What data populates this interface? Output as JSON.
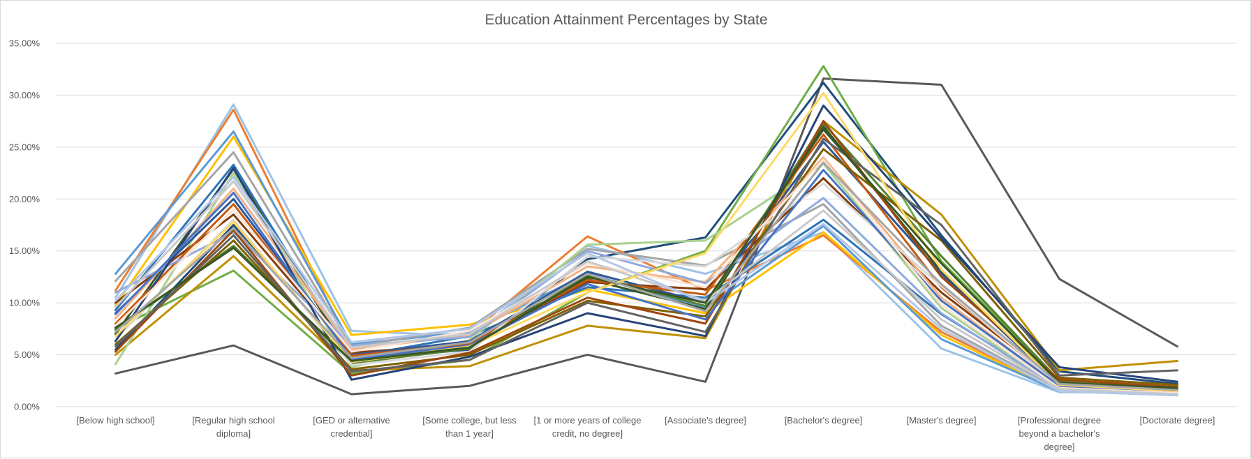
{
  "chart_data": {
    "type": "line",
    "title": "Education Attainment Percentages by State",
    "xlabel": "",
    "ylabel": "",
    "ylim": [
      0,
      35
    ],
    "y_ticks": [
      0,
      5,
      10,
      15,
      20,
      25,
      30,
      35
    ],
    "y_tick_labels": [
      "0.00%",
      "5.00%",
      "10.00%",
      "15.00%",
      "20.00%",
      "25.00%",
      "30.00%",
      "35.00%"
    ],
    "y_unit": "percent",
    "grid": true,
    "legend": "none",
    "categories": [
      "[Below high school]",
      "[Regular high school diploma]",
      "[GED or alternative credential]",
      "[Some college, but less than 1 year]",
      "[1 or more years of college credit, no degree]",
      "[Associate's degree]",
      "[Bachelor's degree]",
      "[Master's degree]",
      "[Professional degree beyond a bachelor's degree]",
      "[Doctorate degree]"
    ],
    "category_label_lines": [
      [
        "[Below high school]"
      ],
      [
        "[Regular high school",
        "diploma]"
      ],
      [
        "[GED or alternative",
        "credential]"
      ],
      [
        "[Some college, but less",
        "than 1 year]"
      ],
      [
        "[1 or more years of college",
        "credit, no degree]"
      ],
      [
        "[Associate's degree]"
      ],
      [
        "[Bachelor's degree]"
      ],
      [
        "[Master's degree]"
      ],
      [
        "[Professional degree",
        "beyond a bachelor's",
        "degree]"
      ],
      [
        "[Doctorate degree]"
      ]
    ],
    "series": [
      {
        "color": "#595959",
        "values": [
          3.2,
          5.9,
          1.2,
          2.0,
          5.0,
          2.4,
          31.6,
          31.0,
          12.3,
          5.8
        ]
      },
      {
        "color": "#1f4e79",
        "values": [
          5.5,
          17.5,
          4.5,
          5.5,
          14.2,
          16.3,
          31.2,
          16.5,
          3.4,
          2.2
        ]
      },
      {
        "color": "#9dc3e6",
        "values": [
          10.5,
          29.1,
          7.3,
          6.8,
          15.5,
          12.8,
          16.8,
          5.6,
          1.4,
          1.3
        ]
      },
      {
        "color": "#ed7d31",
        "values": [
          11.2,
          28.6,
          5.5,
          7.0,
          16.4,
          11.2,
          16.5,
          7.2,
          1.6,
          1.1
        ]
      },
      {
        "color": "#70ad47",
        "values": [
          7.5,
          13.1,
          3.2,
          4.5,
          11.0,
          15.0,
          32.8,
          14.0,
          2.5,
          1.6
        ]
      },
      {
        "color": "#bf9000",
        "values": [
          5.0,
          14.5,
          3.5,
          3.9,
          7.8,
          6.6,
          27.5,
          18.5,
          3.5,
          4.4
        ]
      },
      {
        "color": "#ffc000",
        "values": [
          9.8,
          26.0,
          6.9,
          7.9,
          11.3,
          9.0,
          16.8,
          6.9,
          1.5,
          1.1
        ]
      },
      {
        "color": "#5b9bd5",
        "values": [
          12.8,
          26.5,
          6.0,
          7.2,
          12.8,
          9.5,
          17.4,
          6.5,
          1.5,
          1.1
        ]
      },
      {
        "color": "#a5a5a5",
        "values": [
          12.1,
          24.5,
          5.8,
          7.6,
          15.2,
          13.6,
          19.5,
          7.8,
          1.6,
          1.2
        ]
      },
      {
        "color": "#2e75b6",
        "values": [
          9.3,
          23.3,
          4.8,
          6.8,
          11.5,
          10.5,
          18.0,
          8.9,
          1.9,
          1.5
        ]
      },
      {
        "color": "#a9d18e",
        "values": [
          4.1,
          22.5,
          3.8,
          6.4,
          15.6,
          16.0,
          23.4,
          9.5,
          1.7,
          1.2
        ]
      },
      {
        "color": "#375623",
        "values": [
          7.0,
          22.9,
          4.5,
          6.3,
          12.3,
          9.4,
          27.0,
          13.0,
          2.2,
          1.6
        ]
      },
      {
        "color": "#843c0c",
        "values": [
          10.0,
          18.5,
          5.2,
          6.0,
          12.0,
          11.3,
          22.0,
          11.0,
          2.3,
          1.5
        ]
      },
      {
        "color": "#2f5597",
        "values": [
          9.0,
          20.0,
          5.0,
          6.3,
          13.0,
          10.0,
          25.5,
          12.8,
          2.1,
          1.6
        ]
      },
      {
        "color": "#f4b183",
        "values": [
          8.5,
          21.0,
          5.5,
          6.9,
          13.5,
          12.0,
          24.0,
          10.5,
          1.9,
          1.3
        ]
      },
      {
        "color": "#c55a11",
        "values": [
          8.0,
          19.5,
          4.9,
          6.1,
          12.2,
          10.8,
          26.2,
          11.5,
          2.0,
          1.4
        ]
      },
      {
        "color": "#8faadc",
        "values": [
          11.0,
          16.8,
          5.9,
          6.7,
          15.0,
          11.9,
          20.1,
          9.0,
          1.7,
          1.2
        ]
      },
      {
        "color": "#548235",
        "values": [
          7.4,
          15.5,
          4.2,
          5.6,
          12.7,
          9.7,
          27.3,
          14.5,
          2.5,
          1.8
        ]
      },
      {
        "color": "#7f6000",
        "values": [
          6.0,
          16.0,
          3.6,
          5.0,
          10.2,
          8.7,
          24.8,
          16.0,
          2.8,
          2.1
        ]
      },
      {
        "color": "#d9d9d9",
        "values": [
          6.5,
          18.0,
          4.0,
          5.3,
          14.5,
          13.5,
          21.5,
          11.6,
          2.0,
          1.4
        ]
      },
      {
        "color": "#264478",
        "values": [
          6.3,
          23.0,
          2.6,
          4.8,
          9.0,
          6.8,
          29.0,
          16.2,
          3.8,
          2.4
        ]
      },
      {
        "color": "#9e480e",
        "values": [
          5.3,
          17.0,
          3.0,
          5.2,
          10.5,
          8.0,
          27.5,
          12.5,
          2.6,
          1.9
        ]
      },
      {
        "color": "#636363",
        "values": [
          5.8,
          16.5,
          3.4,
          4.5,
          10.0,
          7.2,
          25.8,
          17.5,
          3.0,
          3.5
        ]
      },
      {
        "color": "#4472c4",
        "values": [
          8.9,
          20.6,
          4.6,
          5.9,
          11.8,
          8.4,
          22.8,
          10.2,
          2.0,
          1.5
        ]
      },
      {
        "color": "#fbe5d6",
        "values": [
          7.8,
          19.0,
          5.3,
          7.3,
          13.8,
          11.5,
          23.8,
          9.8,
          1.8,
          1.3
        ]
      },
      {
        "color": "#c9c9c9",
        "values": [
          9.6,
          21.7,
          5.7,
          7.0,
          14.0,
          10.2,
          18.9,
          8.4,
          1.7,
          1.2
        ]
      },
      {
        "color": "#ffd966",
        "values": [
          6.8,
          17.8,
          4.3,
          5.8,
          11.0,
          14.8,
          30.2,
          13.2,
          2.1,
          1.5
        ]
      },
      {
        "color": "#b4c7e7",
        "values": [
          10.2,
          22.1,
          6.2,
          7.5,
          14.8,
          10.0,
          17.6,
          7.5,
          1.5,
          1.1
        ]
      },
      {
        "color": "#385723",
        "values": [
          7.6,
          15.3,
          4.4,
          5.7,
          12.5,
          10.0,
          26.7,
          13.8,
          2.3,
          1.8
        ]
      },
      {
        "color": "#a6a6a6",
        "values": [
          7.2,
          17.2,
          4.7,
          6.2,
          12.8,
          9.2,
          23.5,
          11.8,
          2.2,
          1.6
        ]
      }
    ]
  }
}
